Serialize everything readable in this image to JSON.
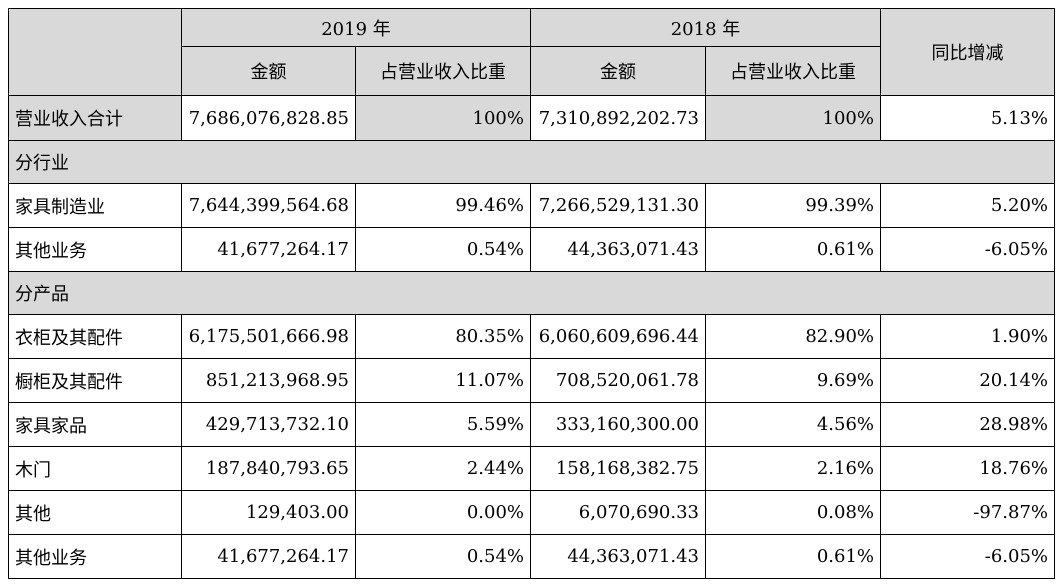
{
  "header": {
    "year1": "2019 年",
    "year2": "2018 年",
    "col_amount": "金额",
    "col_ratio": "占营业收入比重",
    "col_yoy": "同比增减"
  },
  "total": {
    "label": "营业收入合计",
    "amount_2019": "7,686,076,828.85",
    "ratio_2019": "100%",
    "amount_2018": "7,310,892,202.73",
    "ratio_2018": "100%",
    "yoy": "5.13%"
  },
  "sections": [
    {
      "title": "分行业",
      "rows": [
        {
          "label": "家具制造业",
          "amount_2019": "7,644,399,564.68",
          "ratio_2019": "99.46%",
          "amount_2018": "7,266,529,131.30",
          "ratio_2018": "99.39%",
          "yoy": "5.20%"
        },
        {
          "label": "其他业务",
          "amount_2019": "41,677,264.17",
          "ratio_2019": "0.54%",
          "amount_2018": "44,363,071.43",
          "ratio_2018": "0.61%",
          "yoy": "-6.05%"
        }
      ]
    },
    {
      "title": "分产品",
      "rows": [
        {
          "label": "衣柜及其配件",
          "amount_2019": "6,175,501,666.98",
          "ratio_2019": "80.35%",
          "amount_2018": "6,060,609,696.44",
          "ratio_2018": "82.90%",
          "yoy": "1.90%"
        },
        {
          "label": "橱柜及其配件",
          "amount_2019": "851,213,968.95",
          "ratio_2019": "11.07%",
          "amount_2018": "708,520,061.78",
          "ratio_2018": "9.69%",
          "yoy": "20.14%"
        },
        {
          "label": "家具家品",
          "amount_2019": "429,713,732.10",
          "ratio_2019": "5.59%",
          "amount_2018": "333,160,300.00",
          "ratio_2018": "4.56%",
          "yoy": "28.98%"
        },
        {
          "label": "木门",
          "amount_2019": "187,840,793.65",
          "ratio_2019": "2.44%",
          "amount_2018": "158,168,382.75",
          "ratio_2018": "2.16%",
          "yoy": "18.76%"
        },
        {
          "label": "其他",
          "amount_2019": "129,403.00",
          "ratio_2019": "0.00%",
          "amount_2018": "6,070,690.33",
          "ratio_2018": "0.08%",
          "yoy": "-97.87%"
        },
        {
          "label": "其他业务",
          "amount_2019": "41,677,264.17",
          "ratio_2019": "0.54%",
          "amount_2018": "44,363,071.43",
          "ratio_2018": "0.61%",
          "yoy": "-6.05%"
        }
      ]
    }
  ]
}
